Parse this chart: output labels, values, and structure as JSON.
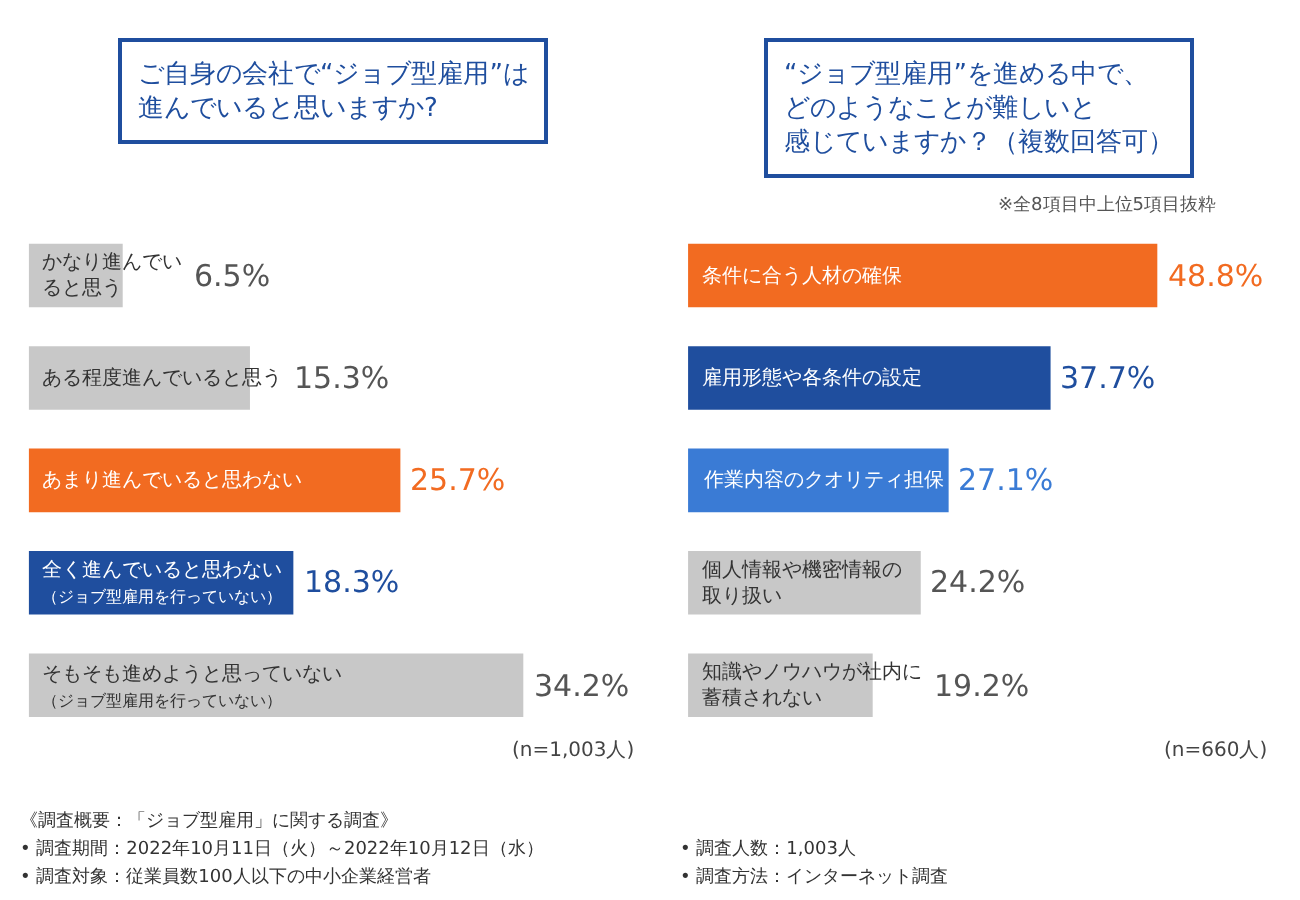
{
  "chart_data": [
    {
      "type": "bar",
      "orientation": "horizontal",
      "title": "ご自身の会社で“ジョブ型雇用”は進んでいると思いますか?",
      "categories": [
        "かなり進んでいると思う",
        "ある程度進んでいると思う",
        "あまり進んでいると思わない",
        "全く進んでいると思わない（ジョブ型雇用を行っていない）",
        "そもそも進めようと思っていない（ジョブ型雇用を行っていない）"
      ],
      "values": [
        6.5,
        15.3,
        25.7,
        18.3,
        34.2
      ],
      "colors": [
        "#c8c8c8",
        "#c8c8c8",
        "#f26b21",
        "#1f4e9e",
        "#c8c8c8"
      ],
      "value_labels": [
        "6.5%",
        "15.3%",
        "25.7%",
        "18.3%",
        "34.2%"
      ],
      "tick_labels": false,
      "annotations": [
        "(n=1,003人)",
        "《調査概要：「ジョブ型雇用」に関する調査》",
        "• 調査期間：2022年10月11日（火）～2022年10月12日（水）",
        "• 調査対象：従業員数100人以下の中小企業経営者",
        "• 調査人数：1,003人",
        "• 調査方法：インターネット調査"
      ]
    },
    {
      "type": "bar",
      "orientation": "horizontal",
      "title": "“ジョブ型雇用”を進める中で、どのようなことが難しいと感じていますか？（複数回答可）",
      "subtitle": "※全8項目中上位5項目抜粋",
      "categories": [
        "条件に合う人材の確保",
        "雇用形態や各条件の設定",
        "作業内容のクオリティ担保",
        "個人情報や機密情報の取り扱い",
        "知識やノウハウが社内に蓄積されない"
      ],
      "values": [
        48.8,
        37.7,
        27.1,
        24.2,
        19.2
      ],
      "colors": [
        "#f26b21",
        "#1f4e9e",
        "#3a7bd5",
        "#c8c8c8",
        "#c8c8c8"
      ],
      "value_labels": [
        "48.8%",
        "37.7%",
        "27.1%",
        "24.2%",
        "19.2%"
      ],
      "tick_labels": false,
      "annotations": [
        "(n=660人)"
      ]
    }
  ]
}
